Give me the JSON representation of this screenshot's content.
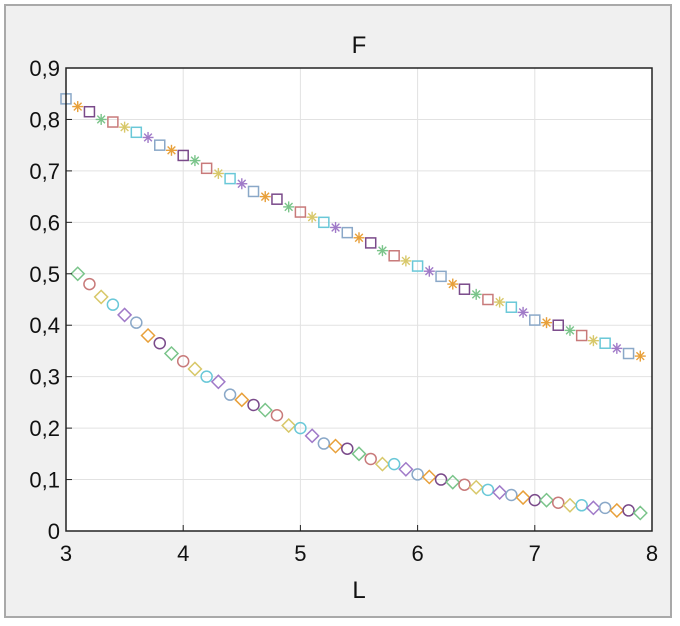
{
  "chart_data": {
    "type": "scatter",
    "title": "F",
    "xlabel": "L",
    "ylabel": "",
    "xlim": [
      3,
      8
    ],
    "ylim": [
      0,
      0.9
    ],
    "x_ticks": [
      "3",
      "4",
      "5",
      "6",
      "7",
      "8"
    ],
    "y_ticks": [
      "0",
      "0,1",
      "0,2",
      "0,3",
      "0,4",
      "0,5",
      "0,6",
      "0,7",
      "0,8",
      "0,9"
    ],
    "grid": true,
    "legend": "none",
    "marker_colors": [
      "#8aa8c8",
      "#e8a03a",
      "#7a4a8a",
      "#7ac48a",
      "#c87a7a",
      "#d8c86a",
      "#6ac8d8",
      "#a07ac8"
    ],
    "series": [
      {
        "marker": "square-star",
        "x": [
          3.0,
          3.1,
          3.2,
          3.3,
          3.4,
          3.5,
          3.6,
          3.7,
          3.8,
          3.9,
          4.0,
          4.1,
          4.2,
          4.3,
          4.4,
          4.5,
          4.6,
          4.7,
          4.8,
          4.9,
          5.0,
          5.1,
          5.2,
          5.3,
          5.4,
          5.5,
          5.6,
          5.7,
          5.8,
          5.9,
          6.0,
          6.1,
          6.2,
          6.3,
          6.4,
          6.5,
          6.6,
          6.7,
          6.8,
          6.9,
          7.0,
          7.1,
          7.2,
          7.3,
          7.4,
          7.5,
          7.6,
          7.7,
          7.8,
          7.9
        ],
        "y": [
          0.84,
          0.825,
          0.815,
          0.8,
          0.795,
          0.785,
          0.775,
          0.765,
          0.75,
          0.74,
          0.73,
          0.72,
          0.705,
          0.695,
          0.685,
          0.675,
          0.66,
          0.65,
          0.645,
          0.63,
          0.62,
          0.61,
          0.6,
          0.59,
          0.58,
          0.57,
          0.56,
          0.545,
          0.535,
          0.525,
          0.515,
          0.505,
          0.495,
          0.48,
          0.47,
          0.46,
          0.45,
          0.445,
          0.435,
          0.425,
          0.41,
          0.405,
          0.4,
          0.39,
          0.38,
          0.37,
          0.365,
          0.355,
          0.345,
          0.34
        ]
      },
      {
        "marker": "circle-diamond",
        "x": [
          3.1,
          3.2,
          3.3,
          3.4,
          3.5,
          3.6,
          3.7,
          3.8,
          3.9,
          4.0,
          4.1,
          4.2,
          4.3,
          4.4,
          4.5,
          4.6,
          4.7,
          4.8,
          4.9,
          5.0,
          5.1,
          5.2,
          5.3,
          5.4,
          5.5,
          5.6,
          5.7,
          5.8,
          5.9,
          6.0,
          6.1,
          6.2,
          6.3,
          6.4,
          6.5,
          6.6,
          6.7,
          6.8,
          6.9,
          7.0,
          7.1,
          7.2,
          7.3,
          7.4,
          7.5,
          7.6,
          7.7,
          7.8,
          7.9
        ],
        "y": [
          0.5,
          0.48,
          0.455,
          0.44,
          0.42,
          0.405,
          0.38,
          0.365,
          0.345,
          0.33,
          0.315,
          0.3,
          0.29,
          0.265,
          0.255,
          0.245,
          0.235,
          0.225,
          0.205,
          0.2,
          0.185,
          0.17,
          0.165,
          0.16,
          0.15,
          0.14,
          0.13,
          0.13,
          0.12,
          0.11,
          0.105,
          0.1,
          0.095,
          0.09,
          0.085,
          0.08,
          0.075,
          0.07,
          0.065,
          0.06,
          0.06,
          0.055,
          0.05,
          0.05,
          0.045,
          0.045,
          0.04,
          0.04,
          0.035
        ]
      }
    ]
  }
}
